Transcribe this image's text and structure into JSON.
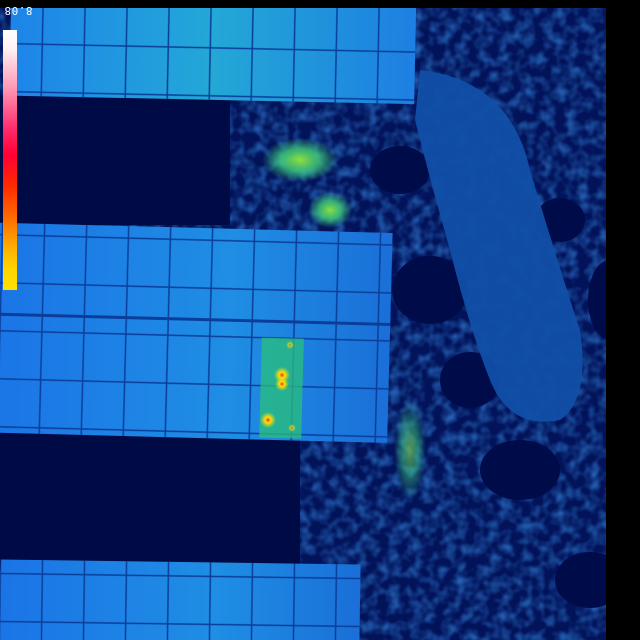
{
  "scale": {
    "max_label": "8.08"
  },
  "palette": {
    "background": "#000000",
    "deep": "#00104a",
    "cold": "#0a3fd0",
    "panel": "#1f7fe8",
    "warm": "#2fd08a",
    "hot": "#ffe200",
    "hottest": "#ff2a2a"
  }
}
